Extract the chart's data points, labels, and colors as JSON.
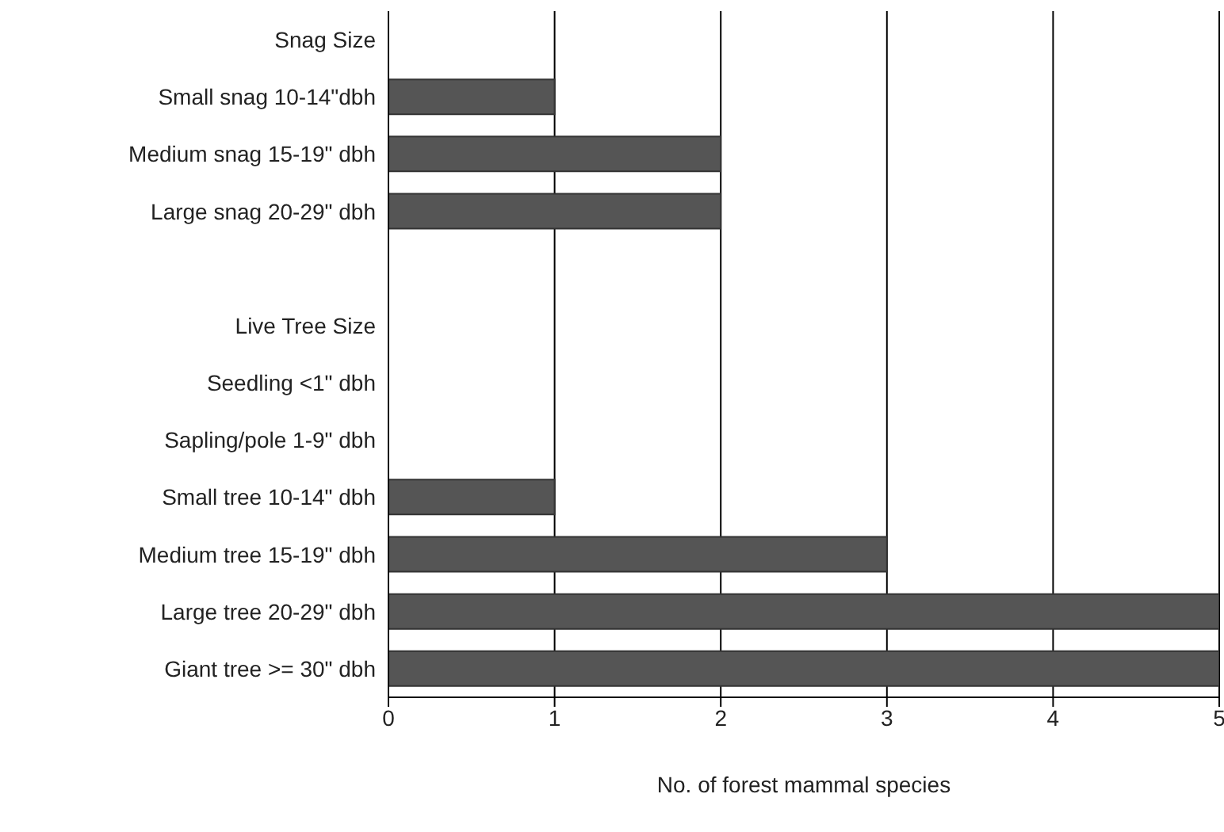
{
  "chart_data": {
    "type": "bar",
    "orientation": "horizontal",
    "xlabel": "No. of forest mammal species",
    "categories": [
      "Snag Size",
      "Small snag 10-14\"dbh",
      "Medium snag 15-19\" dbh",
      "Large snag 20-29\" dbh",
      null,
      "Live Tree Size",
      "Seedling <1\" dbh",
      "Sapling/pole 1-9\" dbh",
      "Small tree 10-14\" dbh",
      "Medium tree 15-19\" dbh",
      "Large tree 20-29\" dbh",
      "Giant tree >= 30\" dbh"
    ],
    "values": [
      null,
      1,
      2,
      2,
      null,
      null,
      0,
      0,
      1,
      3,
      5,
      5
    ],
    "color": "#555555",
    "xlim": [
      0,
      5
    ],
    "xticks": [
      0,
      1,
      2,
      3,
      4,
      5
    ],
    "grid": "x",
    "legend": false
  }
}
